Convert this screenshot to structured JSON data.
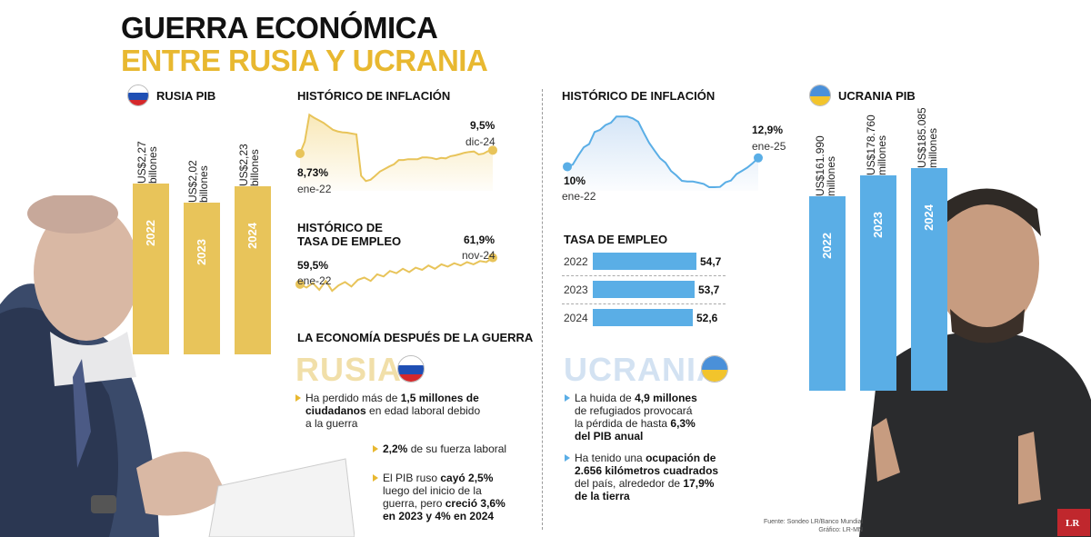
{
  "title": {
    "line1": "GUERRA ECONÓMICA",
    "line2": "ENTRE RUSIA Y UCRANIA"
  },
  "colors": {
    "russia": "#e8c45a",
    "ukraine": "#5aaee6",
    "title_accent": "#e8b830"
  },
  "russia_gdp": {
    "label": "RUSIA PIB",
    "bars": [
      {
        "year": "2022",
        "value_label": "US$2,27 billones"
      },
      {
        "year": "2023",
        "value_label": "US$2,02 billones"
      },
      {
        "year": "2024",
        "value_label": "US$2,23 billones"
      }
    ]
  },
  "ukraine_gdp": {
    "label": "UCRANIA PIB",
    "bars": [
      {
        "year": "2022",
        "value_label": "US$161.990 millones"
      },
      {
        "year": "2023",
        "value_label": "US$178.760 millones"
      },
      {
        "year": "2024",
        "value_label": "US$185.085 millones"
      }
    ]
  },
  "russia_inflation": {
    "title": "HISTÓRICO DE INFLACIÓN",
    "start": {
      "value": "8,73%",
      "date": "ene-22"
    },
    "end": {
      "value": "9,5%",
      "date": "dic-24"
    }
  },
  "russia_employment": {
    "title_line1": "HISTÓRICO DE",
    "title_line2": "TASA DE EMPLEO",
    "start": {
      "value": "59,5%",
      "date": "ene-22"
    },
    "end": {
      "value": "61,9%",
      "date": "nov-24"
    }
  },
  "ukraine_inflation": {
    "title": "HISTÓRICO DE INFLACIÓN",
    "start": {
      "value": "10%",
      "date": "ene-22"
    },
    "end": {
      "value": "12,9%",
      "date": "ene-25"
    }
  },
  "ukraine_employment": {
    "title": "TASA DE EMPLEO",
    "rows": [
      {
        "year": "2022",
        "value": "54,7"
      },
      {
        "year": "2023",
        "value": "53,7"
      },
      {
        "year": "2024",
        "value": "52,6"
      }
    ]
  },
  "after_war": {
    "heading": "LA ECONOMÍA DESPUÉS DE LA GUERRA",
    "russia_label": "RUSIA",
    "ukraine_label": "UCRANIA"
  },
  "russia_bullets": {
    "b1_a": "Ha perdido más de ",
    "b1_b": "1,5 millones de",
    "b1_c": "ciudadanos",
    "b1_d": " en edad laboral debido",
    "b1_e": "a la guerra",
    "b2_a": "2,2%",
    "b2_b": " de su fuerza laboral",
    "b3_a": "El PIB ruso ",
    "b3_b": "cayó 2,5%",
    "b3_c": "luego del inicio de la",
    "b3_d": "guerra, pero ",
    "b3_e": "creció 3,6%",
    "b3_f": "en 2023 y 4% en 2024"
  },
  "ukraine_bullets": {
    "b1_a": "La huida de ",
    "b1_b": "4,9 millones",
    "b1_c": "de refugiados provocará",
    "b1_d": "la pérdida de hasta ",
    "b1_e": "6,3%",
    "b1_f": "del PIB anual",
    "b2_a": "Ha tenido una ",
    "b2_b": "ocupación de",
    "b2_c": "2.656 kilómetros cuadrados",
    "b2_d": "del país, alrededor de ",
    "b2_e": "17,9%",
    "b2_f": "de la tierra"
  },
  "source": {
    "line1": "Fuente: Sondeo LR/Banco Mundial",
    "line2": "Gráfico: LR-MN",
    "logo": "LR"
  },
  "chart_data": [
    {
      "type": "bar",
      "title": "RUSIA PIB",
      "categories": [
        "2022",
        "2023",
        "2024"
      ],
      "values": [
        2.27,
        2.02,
        2.23
      ],
      "value_labels": [
        "US$2,27 billones",
        "US$2,02 billones",
        "US$2,23 billones"
      ]
    },
    {
      "type": "bar",
      "title": "UCRANIA PIB",
      "categories": [
        "2022",
        "2023",
        "2024"
      ],
      "values": [
        161990,
        178760,
        185085
      ],
      "value_labels": [
        "US$161.990 millones",
        "US$178.760 millones",
        "US$185.085 millones"
      ]
    },
    {
      "type": "area",
      "title": "HISTÓRICO DE INFLACIÓN",
      "values": [
        8.73,
        11.5,
        17.8,
        17.1,
        16.5,
        15.9,
        15.1,
        14.3,
        13.9,
        13.7,
        13.6,
        13.4,
        13.2,
        3.5,
        2.3,
        2.6,
        3.5,
        4.5,
        5.1,
        5.7,
        6.2,
        7.2,
        7.2,
        7.4,
        7.4,
        7.4,
        7.8,
        7.8,
        7.7,
        7.4,
        7.7,
        7.6,
        8.1,
        8.3,
        8.6,
        8.9,
        9.1,
        9.2,
        8.5,
        8.7,
        9.3,
        9.5
      ],
      "start_label": "ene-22",
      "end_label": "dic-24"
    },
    {
      "type": "line",
      "title": "HISTÓRICO DE TASA DE EMPLEO",
      "values": [
        59.5,
        59.2,
        59.6,
        59.0,
        59.8,
        58.9,
        59.4,
        59.7,
        59.3,
        59.9,
        60.1,
        59.8,
        60.4,
        60.2,
        60.7,
        60.5,
        60.9,
        60.6,
        61.0,
        60.8,
        61.2,
        60.9,
        61.3,
        61.1,
        61.4,
        61.2,
        61.5,
        61.3,
        61.6,
        61.5,
        61.9
      ],
      "start_label": "ene-22",
      "end_label": "nov-24"
    },
    {
      "type": "area",
      "title": "HISTÓRICO DE INFLACIÓN",
      "values": [
        10,
        10.7,
        13.7,
        16.4,
        17.5,
        21.5,
        22.2,
        23.8,
        24.6,
        26.6,
        26.6,
        26.6,
        26.0,
        24.9,
        21.3,
        17.9,
        15.3,
        12.8,
        11.3,
        8.6,
        7.1,
        5.3,
        5.1,
        5.1,
        4.7,
        4.3,
        3.2,
        3.2,
        3.3,
        4.8,
        5.4,
        7.5,
        8.6,
        9.7,
        11.2,
        12.9
      ],
      "start_label": "ene-22",
      "end_label": "ene-25"
    },
    {
      "type": "bar",
      "title": "TASA DE EMPLEO",
      "categories": [
        "2022",
        "2023",
        "2024"
      ],
      "values": [
        54.7,
        53.7,
        52.6
      ]
    }
  ]
}
